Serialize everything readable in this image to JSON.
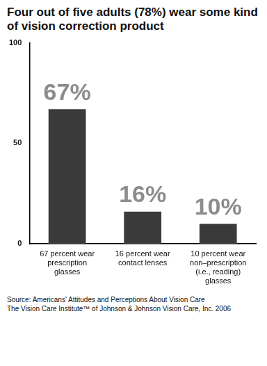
{
  "chart_data": {
    "type": "bar",
    "title": "Four out of five adults (78%) wear some kind of vision correction product",
    "categories": [
      "67 percent wear prescription glasses",
      "16 percent wear contact lenses",
      "10 percent wear non–prescription (i.e., reading) glasses"
    ],
    "values": [
      67,
      16,
      10
    ],
    "value_labels": [
      "67%",
      "16%",
      "10%"
    ],
    "data_labels": true,
    "color": "#3a3a3a",
    "ylim": [
      0,
      100
    ],
    "yticks": [
      0,
      50,
      100
    ],
    "grid": false,
    "annotations": [
      "Source: Americans' Attitudes and Perceptions About Vision Care",
      "The Vision Care Institute™ of Johnson & Johnson Vision Care, Inc. 2006"
    ]
  }
}
